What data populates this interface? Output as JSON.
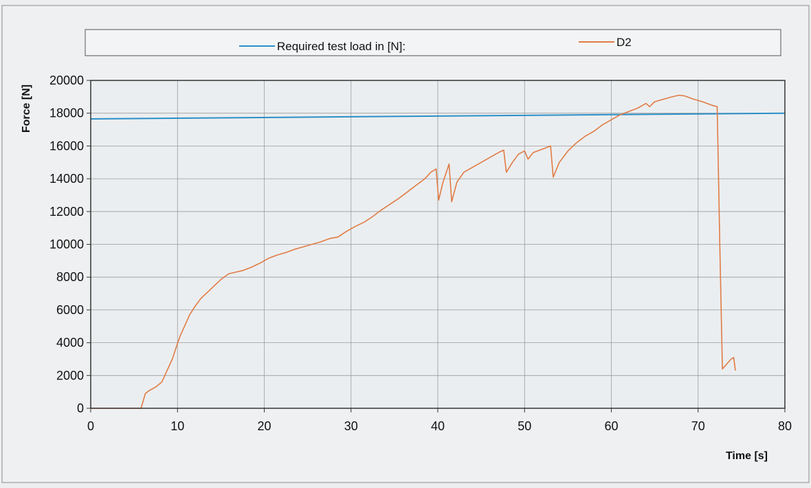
{
  "chart_data": {
    "type": "line",
    "title": "",
    "xlabel": "Time [s]",
    "ylabel": "Force [N]",
    "xlim": [
      0,
      80
    ],
    "ylim": [
      0,
      20000
    ],
    "xticks": [
      0,
      10,
      20,
      30,
      40,
      50,
      60,
      70,
      80
    ],
    "yticks": [
      0,
      2000,
      4000,
      6000,
      8000,
      10000,
      12000,
      14000,
      16000,
      18000,
      20000
    ],
    "grid": true,
    "legend_position": "top",
    "series": [
      {
        "name": "Required test load in [N]:",
        "color": "#2a8fc8",
        "points": [
          [
            0,
            17650
          ],
          [
            80,
            18000
          ]
        ]
      },
      {
        "name": "D2",
        "color": "#e07b45",
        "points": [
          [
            0,
            0
          ],
          [
            5.8,
            0
          ],
          [
            6.3,
            900
          ],
          [
            6.8,
            1100
          ],
          [
            7.5,
            1300
          ],
          [
            8.2,
            1600
          ],
          [
            8.8,
            2300
          ],
          [
            9.4,
            3000
          ],
          [
            9.9,
            3800
          ],
          [
            10.3,
            4400
          ],
          [
            10.8,
            5000
          ],
          [
            11.4,
            5700
          ],
          [
            12.0,
            6200
          ],
          [
            12.7,
            6700
          ],
          [
            13.5,
            7100
          ],
          [
            14.3,
            7500
          ],
          [
            15.1,
            7900
          ],
          [
            15.9,
            8200
          ],
          [
            16.7,
            8300
          ],
          [
            17.5,
            8400
          ],
          [
            18.5,
            8600
          ],
          [
            19.5,
            8850
          ],
          [
            20.5,
            9150
          ],
          [
            21.5,
            9350
          ],
          [
            22.5,
            9500
          ],
          [
            23.5,
            9700
          ],
          [
            24.5,
            9850
          ],
          [
            25.5,
            10000
          ],
          [
            26.5,
            10150
          ],
          [
            27.5,
            10350
          ],
          [
            28.5,
            10450
          ],
          [
            29.5,
            10800
          ],
          [
            30.5,
            11100
          ],
          [
            31.5,
            11350
          ],
          [
            32.5,
            11700
          ],
          [
            33.5,
            12100
          ],
          [
            34.5,
            12450
          ],
          [
            35.5,
            12800
          ],
          [
            36.5,
            13200
          ],
          [
            37.5,
            13600
          ],
          [
            38.5,
            14000
          ],
          [
            39.2,
            14400
          ],
          [
            39.8,
            14600
          ],
          [
            40.1,
            12700
          ],
          [
            40.6,
            13800
          ],
          [
            41.3,
            14900
          ],
          [
            41.6,
            12600
          ],
          [
            42.2,
            13800
          ],
          [
            43.0,
            14400
          ],
          [
            44.0,
            14700
          ],
          [
            45.0,
            15000
          ],
          [
            46.0,
            15300
          ],
          [
            47.0,
            15600
          ],
          [
            47.6,
            15750
          ],
          [
            47.9,
            14400
          ],
          [
            48.6,
            15000
          ],
          [
            49.3,
            15500
          ],
          [
            50.0,
            15700
          ],
          [
            50.4,
            15200
          ],
          [
            51.0,
            15600
          ],
          [
            52.0,
            15800
          ],
          [
            53.0,
            16000
          ],
          [
            53.3,
            14100
          ],
          [
            54.0,
            15000
          ],
          [
            55.0,
            15700
          ],
          [
            56.0,
            16200
          ],
          [
            57.0,
            16600
          ],
          [
            58.0,
            16900
          ],
          [
            59.0,
            17300
          ],
          [
            60.0,
            17600
          ],
          [
            61.0,
            17900
          ],
          [
            62.0,
            18100
          ],
          [
            63.0,
            18300
          ],
          [
            64.0,
            18600
          ],
          [
            64.4,
            18400
          ],
          [
            65.0,
            18700
          ],
          [
            66.0,
            18850
          ],
          [
            67.0,
            19000
          ],
          [
            67.8,
            19100
          ],
          [
            68.5,
            19050
          ],
          [
            69.5,
            18850
          ],
          [
            70.5,
            18700
          ],
          [
            71.5,
            18500
          ],
          [
            72.2,
            18400
          ],
          [
            72.5,
            10000
          ],
          [
            72.8,
            2400
          ],
          [
            73.3,
            2700
          ],
          [
            73.8,
            3000
          ],
          [
            74.1,
            3100
          ],
          [
            74.3,
            2300
          ]
        ]
      }
    ]
  }
}
